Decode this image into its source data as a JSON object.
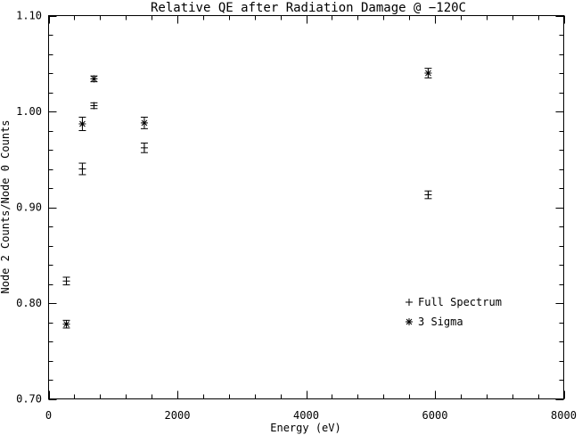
{
  "chart_data": {
    "type": "scatter",
    "title": "Relative QE after Radiation Damage @ −120C",
    "xlabel": "Energy (eV)",
    "ylabel": "Node 2 Counts/Node 0 Counts",
    "xlim": [
      0,
      8000
    ],
    "ylim": [
      0.7,
      1.1
    ],
    "xticks": [
      0,
      2000,
      4000,
      6000,
      8000
    ],
    "xtick_labels": [
      "0",
      "2000",
      "4000",
      "6000",
      "8000"
    ],
    "yticks": [
      0.7,
      0.8,
      0.9,
      1.0,
      1.1
    ],
    "ytick_labels": [
      "0.70",
      "0.80",
      "0.90",
      "1.00",
      "1.10"
    ],
    "grid": false,
    "legend_position": "lower-right",
    "series": [
      {
        "name": "Full Spectrum",
        "marker": "plus",
        "points": [
          {
            "x": 277,
            "y": 0.823,
            "err": 0.004
          },
          {
            "x": 525,
            "y": 0.94,
            "err": 0.006
          },
          {
            "x": 705,
            "y": 1.006,
            "err": 0.003
          },
          {
            "x": 1487,
            "y": 0.962,
            "err": 0.005
          },
          {
            "x": 5895,
            "y": 0.913,
            "err": 0.004
          }
        ]
      },
      {
        "name": "3 Sigma",
        "marker": "asterisk",
        "points": [
          {
            "x": 277,
            "y": 0.778,
            "err": 0.004
          },
          {
            "x": 525,
            "y": 0.987,
            "err": 0.007
          },
          {
            "x": 705,
            "y": 1.034,
            "err": 0.003
          },
          {
            "x": 1487,
            "y": 0.988,
            "err": 0.006
          },
          {
            "x": 5895,
            "y": 1.04,
            "err": 0.005
          }
        ]
      }
    ]
  }
}
